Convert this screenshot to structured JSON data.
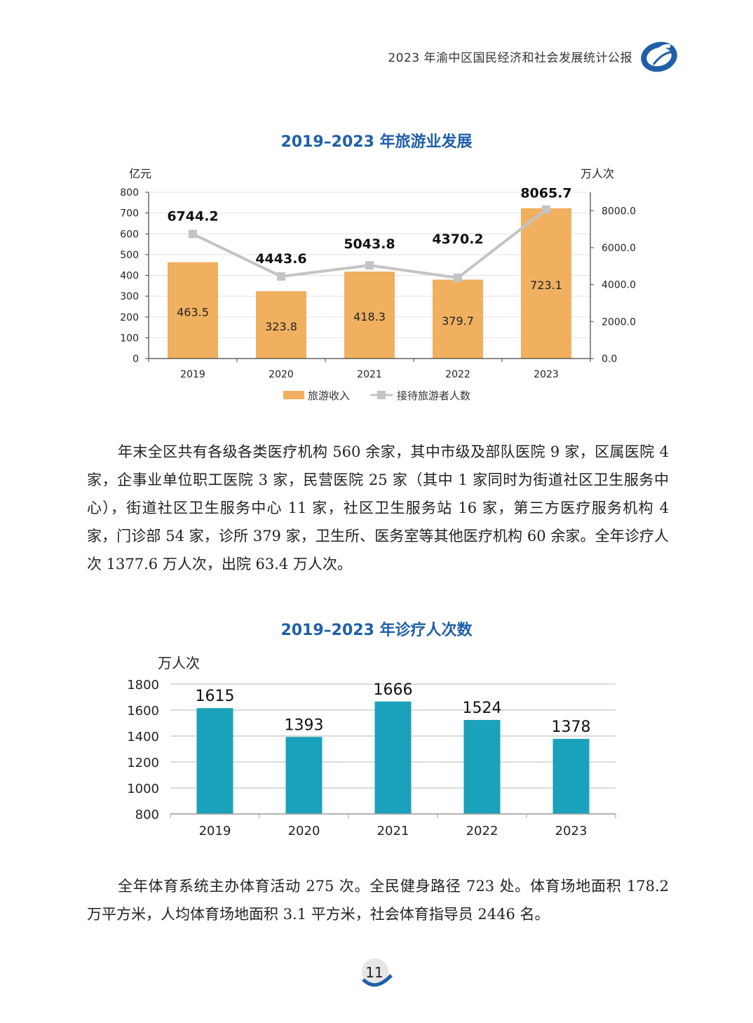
{
  "header": {
    "title": "2023 年渝中区国民经济和社会发展统计公报",
    "accent": "#1f5fa8",
    "logo_icon": "statistics-bureau-logo-icon"
  },
  "chart1": {
    "title": "2019–2023 年旅游业发展"
  },
  "chart2": {
    "title": "2019–2023 年诊疗人次数"
  },
  "paragraphs": {
    "medical": "年末全区共有各级各类医疗机构 560 余家，其中市级及部队医院 9 家，区属医院 4 家，企事业单位职工医院 3 家，民营医院 25 家（其中 1 家同时为街道社区卫生服务中心），街道社区卫生服务中心 11 家，社区卫生服务站 16 家，第三方医疗服务机构 4 家，门诊部 54 家，诊所 379 家，卫生所、医务室等其他医疗机构 60 余家。全年诊疗人次 1377.6 万人次，出院 63.4 万人次。",
    "sports": "全年体育系统主办体育活动 275 次。全民健身路径 723 处。体育场地面积 178.2 万平方米，人均体育场地面积 3.1 平方米，社会体育指导员 2446 名。"
  },
  "footer": {
    "page_number": "11"
  },
  "chart_data": [
    {
      "type": "bar",
      "title": "2019–2023 年旅游业发展",
      "categories": [
        "2019",
        "2020",
        "2021",
        "2022",
        "2023"
      ],
      "ylabel": "亿元",
      "y2label": "万人次",
      "ylim": [
        0,
        800
      ],
      "y2lim": [
        0,
        9000
      ],
      "yticks": [
        "0",
        "100",
        "200",
        "300",
        "400",
        "500",
        "600",
        "700",
        "800"
      ],
      "y2ticks": [
        "0.0",
        "2000.0",
        "4000.0",
        "6000.0",
        "8000.0"
      ],
      "series": [
        {
          "name": "旅游收入",
          "type": "bar",
          "color": "#f0b060",
          "values": [
            463.5,
            323.8,
            418.3,
            379.7,
            723.1
          ],
          "labels": [
            "463.5",
            "323.8",
            "418.3",
            "379.7",
            "723.1"
          ]
        },
        {
          "name": "接待旅游者人数",
          "type": "line",
          "axis": "right",
          "color": "#c4c4c4",
          "values": [
            6744.2,
            4443.6,
            5043.8,
            4370.2,
            8065.7
          ],
          "labels": [
            "6744.2",
            "4443.6",
            "5043.8",
            "4370.2",
            "8065.7"
          ]
        }
      ],
      "grid": true,
      "legend": "bottom"
    },
    {
      "type": "bar",
      "title": "2019–2023 年诊疗人次数",
      "categories": [
        "2019",
        "2020",
        "2021",
        "2022",
        "2023"
      ],
      "ylabel": "万人次",
      "ylim": [
        800,
        1800
      ],
      "yticks": [
        "800",
        "1000",
        "1200",
        "1400",
        "1600",
        "1800"
      ],
      "series": [
        {
          "color": "#1aa1bb",
          "values": [
            1615,
            1393,
            1666,
            1524,
            1378
          ],
          "labels": [
            "1615",
            "1393",
            "1666",
            "1524",
            "1378"
          ]
        }
      ],
      "grid": true,
      "legend": "none"
    }
  ]
}
